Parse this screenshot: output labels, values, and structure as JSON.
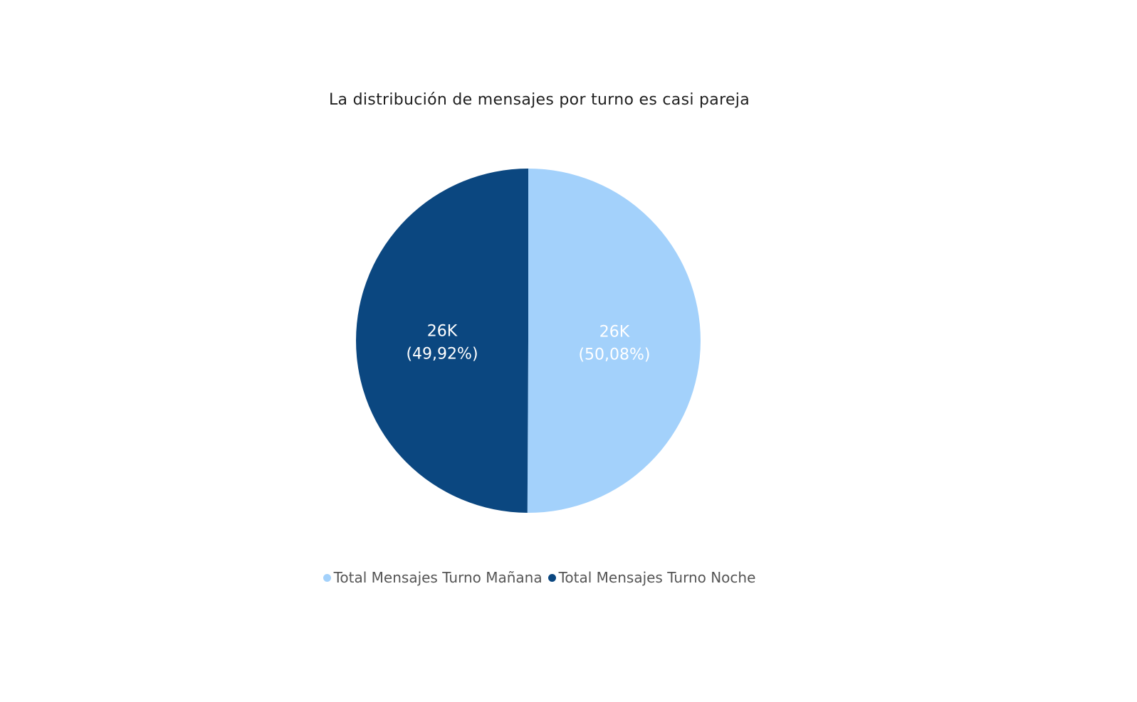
{
  "chart_data": {
    "type": "pie",
    "title": "La distribución de mensajes por turno es casi pareja",
    "slices": [
      {
        "name": "Total Mensajes Turno Mañana",
        "value_label": "26K",
        "percent": 50.08,
        "percent_label": "(50,08%)",
        "color": "#A3D1FB"
      },
      {
        "name": "Total Mensajes Turno Noche",
        "value_label": "26K",
        "percent": 49.92,
        "percent_label": "(49,92%)",
        "color": "#0B4780"
      }
    ],
    "legend_position": "bottom"
  }
}
